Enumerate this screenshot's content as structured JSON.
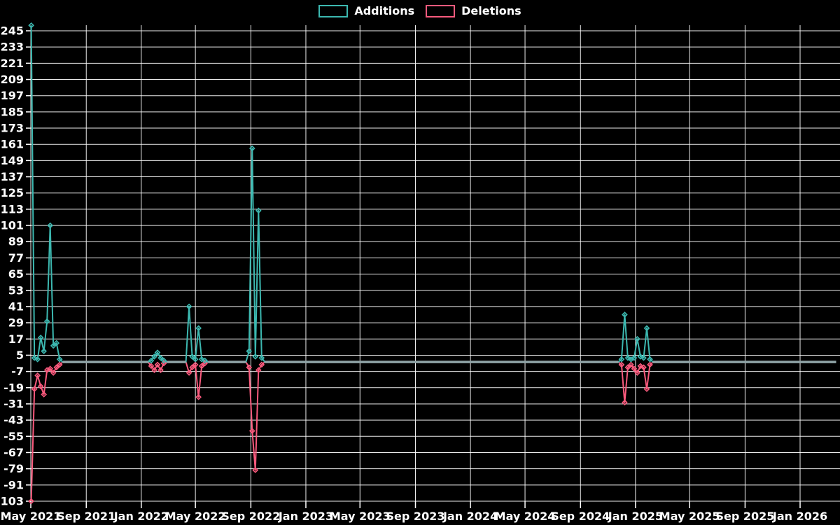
{
  "page": {
    "background": "#000000"
  },
  "legend": {
    "items": [
      {
        "name": "Additions",
        "color": "#3cb8b0"
      },
      {
        "name": "Deletions",
        "color": "#fa5a7d"
      }
    ]
  },
  "chart_data": {
    "type": "line",
    "title": "",
    "legend_position": "top-center",
    "background": "#000000",
    "grid": true,
    "gridline_color": "#ffffff",
    "label_color": "#ffffff",
    "zero_overlap_color": "#8fa3a6",
    "marker_shape": "diamond",
    "series": [
      {
        "name": "Additions",
        "key": "additions",
        "color": "#3cb8b0"
      },
      {
        "name": "Deletions",
        "key": "deletions",
        "color": "#fa5a7d"
      }
    ],
    "y_axis": {
      "min": -103,
      "max": 249,
      "tick_step": 12,
      "ticks": [
        245,
        233,
        221,
        209,
        197,
        185,
        173,
        161,
        149,
        137,
        125,
        113,
        101,
        89,
        77,
        65,
        53,
        41,
        29,
        17,
        5,
        -7,
        -19,
        -31,
        -43,
        -55,
        -67,
        -79,
        -91,
        -103
      ]
    },
    "x_axis": {
      "start": "2021-05-01",
      "end": "2026-03-30",
      "ticks": [
        {
          "date": "2021-05-01",
          "label": "May 2021"
        },
        {
          "date": "2021-09-01",
          "label": "Sep 2021"
        },
        {
          "date": "2022-01-01",
          "label": "Jan 2022"
        },
        {
          "date": "2022-05-01",
          "label": "May 2022"
        },
        {
          "date": "2022-09-01",
          "label": "Sep 2022"
        },
        {
          "date": "2023-01-01",
          "label": "Jan 2023"
        },
        {
          "date": "2023-05-01",
          "label": "May 2023"
        },
        {
          "date": "2023-09-01",
          "label": "Sep 2023"
        },
        {
          "date": "2024-01-01",
          "label": "Jan 2024"
        },
        {
          "date": "2024-05-01",
          "label": "May 2024"
        },
        {
          "date": "2024-09-01",
          "label": "Sep 2024"
        },
        {
          "date": "2025-01-01",
          "label": "Jan 2025"
        },
        {
          "date": "2025-05-01",
          "label": "May 2025"
        },
        {
          "date": "2025-09-01",
          "label": "Sep 2025"
        },
        {
          "date": "2026-01-01",
          "label": "Jan 2026"
        }
      ]
    },
    "sampling": {
      "interval_days": 7,
      "first_week": "2021-05-02",
      "last_week": "2026-03-22",
      "default_additions": 0,
      "default_deletions": 0
    },
    "weeks_nonzero": [
      {
        "date": "2021-05-02",
        "additions": 249,
        "deletions": -103
      },
      {
        "date": "2021-05-09",
        "additions": 3,
        "deletions": -20
      },
      {
        "date": "2021-05-16",
        "additions": 2,
        "deletions": -10
      },
      {
        "date": "2021-05-23",
        "additions": 18,
        "deletions": -18
      },
      {
        "date": "2021-05-30",
        "additions": 8,
        "deletions": -24
      },
      {
        "date": "2021-06-06",
        "additions": 30,
        "deletions": -6
      },
      {
        "date": "2021-06-13",
        "additions": 101,
        "deletions": -5
      },
      {
        "date": "2021-06-20",
        "additions": 12,
        "deletions": -8
      },
      {
        "date": "2021-06-27",
        "additions": 14,
        "deletions": -4
      },
      {
        "date": "2021-07-04",
        "additions": 2,
        "deletions": -2
      },
      {
        "date": "2022-01-23",
        "additions": 1,
        "deletions": -3
      },
      {
        "date": "2022-01-30",
        "additions": 4,
        "deletions": -6
      },
      {
        "date": "2022-02-06",
        "additions": 7,
        "deletions": -2
      },
      {
        "date": "2022-02-13",
        "additions": 3,
        "deletions": -6
      },
      {
        "date": "2022-02-20",
        "additions": 1,
        "deletions": -1
      },
      {
        "date": "2022-04-17",
        "additions": 41,
        "deletions": -8
      },
      {
        "date": "2022-04-24",
        "additions": 4,
        "deletions": -4
      },
      {
        "date": "2022-05-01",
        "additions": 2,
        "deletions": -2
      },
      {
        "date": "2022-05-08",
        "additions": 25,
        "deletions": -26
      },
      {
        "date": "2022-05-15",
        "additions": 2,
        "deletions": -3
      },
      {
        "date": "2022-05-22",
        "additions": 1,
        "deletions": -1
      },
      {
        "date": "2022-08-28",
        "additions": 8,
        "deletions": -4
      },
      {
        "date": "2022-09-04",
        "additions": 158,
        "deletions": -51
      },
      {
        "date": "2022-09-11",
        "additions": 4,
        "deletions": -80
      },
      {
        "date": "2022-09-18",
        "additions": 112,
        "deletions": -6
      },
      {
        "date": "2022-09-25",
        "additions": 3,
        "deletions": -2
      },
      {
        "date": "2024-12-01",
        "additions": 2,
        "deletions": -2
      },
      {
        "date": "2024-12-08",
        "additions": 35,
        "deletions": -30
      },
      {
        "date": "2024-12-15",
        "additions": 3,
        "deletions": -4
      },
      {
        "date": "2024-12-22",
        "additions": 2,
        "deletions": -2
      },
      {
        "date": "2024-12-29",
        "additions": 3,
        "deletions": -5
      },
      {
        "date": "2025-01-05",
        "additions": 17,
        "deletions": -8
      },
      {
        "date": "2025-01-12",
        "additions": 4,
        "deletions": -3
      },
      {
        "date": "2025-01-19",
        "additions": 3,
        "deletions": -4
      },
      {
        "date": "2025-01-26",
        "additions": 25,
        "deletions": -20
      },
      {
        "date": "2025-02-02",
        "additions": 2,
        "deletions": -2
      }
    ]
  }
}
